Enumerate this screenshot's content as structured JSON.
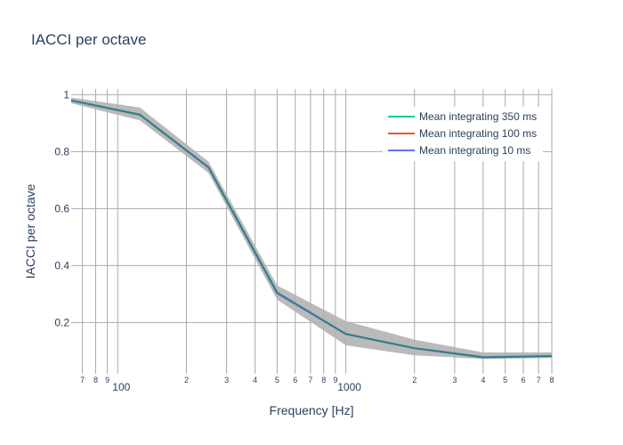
{
  "chart_data": {
    "type": "line",
    "title": "IACCI per octave",
    "xlabel": "Frequency [Hz]",
    "ylabel": "IACCI per octave",
    "x_scale": "log",
    "xlim": [
      62.5,
      8000
    ],
    "ylim": [
      0.02,
      1.02
    ],
    "grid": true,
    "legend_position": "top-right",
    "y_ticks": [
      {
        "value": 0.2,
        "label": "0.2"
      },
      {
        "value": 0.4,
        "label": "0.4"
      },
      {
        "value": 0.6,
        "label": "0.6"
      },
      {
        "value": 0.8,
        "label": "0.8"
      },
      {
        "value": 1.0,
        "label": "1"
      }
    ],
    "x_ticks": [
      {
        "value": 70,
        "label": "7",
        "kind": "minor"
      },
      {
        "value": 80,
        "label": "8",
        "kind": "minor"
      },
      {
        "value": 90,
        "label": "9",
        "kind": "minor"
      },
      {
        "value": 100,
        "label": "100",
        "kind": "major"
      },
      {
        "value": 200,
        "label": "2",
        "kind": "minor"
      },
      {
        "value": 300,
        "label": "3",
        "kind": "minor"
      },
      {
        "value": 400,
        "label": "4",
        "kind": "minor"
      },
      {
        "value": 500,
        "label": "5",
        "kind": "minor"
      },
      {
        "value": 600,
        "label": "6",
        "kind": "minor"
      },
      {
        "value": 700,
        "label": "7",
        "kind": "minor"
      },
      {
        "value": 800,
        "label": "8",
        "kind": "minor"
      },
      {
        "value": 900,
        "label": "9",
        "kind": "minor"
      },
      {
        "value": 1000,
        "label": "1000",
        "kind": "major"
      },
      {
        "value": 2000,
        "label": "2",
        "kind": "minor"
      },
      {
        "value": 3000,
        "label": "3",
        "kind": "minor"
      },
      {
        "value": 4000,
        "label": "4",
        "kind": "minor"
      },
      {
        "value": 5000,
        "label": "5",
        "kind": "minor"
      },
      {
        "value": 6000,
        "label": "6",
        "kind": "minor"
      },
      {
        "value": 7000,
        "label": "7",
        "kind": "minor"
      },
      {
        "value": 8000,
        "label": "8",
        "kind": "minor"
      }
    ],
    "x": [
      62.5,
      125,
      250,
      500,
      1000,
      2000,
      4000,
      8000
    ],
    "band": {
      "lower": [
        0.97,
        0.91,
        0.725,
        0.28,
        0.12,
        0.085,
        0.072,
        0.076
      ],
      "upper": [
        0.99,
        0.955,
        0.765,
        0.33,
        0.205,
        0.14,
        0.095,
        0.095
      ],
      "color": "#b3b3b3"
    },
    "series": [
      {
        "name": "Mean integrating 350 ms",
        "color": "#00cc96",
        "values": [
          0.98,
          0.93,
          0.745,
          0.305,
          0.16,
          0.11,
          0.078,
          0.082
        ]
      },
      {
        "name": "Mean integrating 100 ms",
        "color": "#ef553b",
        "values": [
          0.98,
          0.93,
          0.745,
          0.303,
          0.16,
          0.11,
          0.079,
          0.082
        ]
      },
      {
        "name": "Mean integrating 10 ms",
        "color": "#636efa",
        "values": [
          0.979,
          0.929,
          0.744,
          0.302,
          0.159,
          0.109,
          0.079,
          0.083
        ]
      }
    ]
  }
}
